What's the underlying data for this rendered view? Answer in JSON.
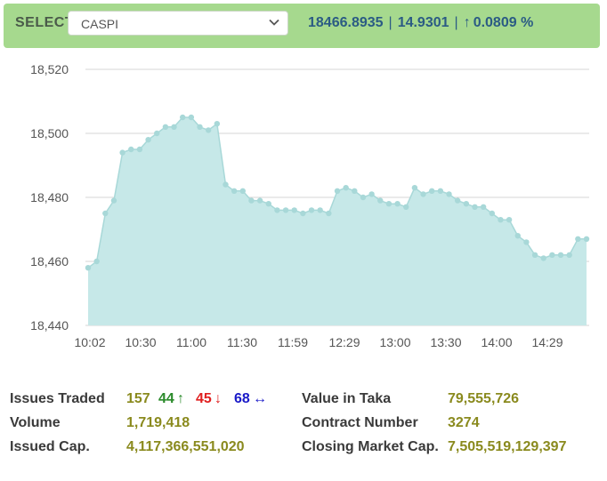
{
  "header": {
    "select_label": "SELECT",
    "selected_index": "CASPI",
    "value": "18466.8935",
    "change": "14.9301",
    "change_pct": "0.0809 %",
    "separator": "|",
    "arrow_icon": "↑",
    "accent_color": "#a6d98e"
  },
  "chart_data": {
    "type": "area",
    "ylim": [
      18440,
      18520
    ],
    "yticks": [
      18440,
      18460,
      18480,
      18500,
      18520
    ],
    "ytick_labels": [
      "18,440",
      "18,460",
      "18,480",
      "18,500",
      "18,520"
    ],
    "xtick_labels": [
      "10:02",
      "10:30",
      "11:00",
      "11:30",
      "11:59",
      "12:29",
      "13:00",
      "13:30",
      "14:00",
      "14:29"
    ],
    "series": [
      {
        "values": [
          18458,
          18460,
          18475,
          18479,
          18494,
          18495,
          18495,
          18498,
          18500,
          18502,
          18502,
          18505,
          18505,
          18502,
          18501,
          18503,
          18484,
          18482,
          18482,
          18479,
          18479,
          18478,
          18476,
          18476,
          18476,
          18475,
          18476,
          18476,
          18475,
          18482,
          18483,
          18482,
          18480,
          18481,
          18479,
          18478,
          18478,
          18477,
          18483,
          18481,
          18482,
          18482,
          18481,
          18479,
          18478,
          18477,
          18477,
          18475,
          18473,
          18473,
          18468,
          18466,
          18462,
          18461,
          18462,
          18462,
          18462,
          18467,
          18467
        ],
        "color": "#a8d8d8",
        "fill": "#c6e8e8"
      }
    ],
    "grid": true
  },
  "stats": {
    "issues_traded_label": "Issues Traded",
    "issues_traded": "157",
    "advanced": "44",
    "advanced_icon": "↑",
    "declined": "45",
    "declined_icon": "↓",
    "unchanged": "68",
    "unchanged_icon": "↔",
    "volume_label": "Volume",
    "volume": "1,719,418",
    "issued_cap_label": "Issued Cap.",
    "issued_cap": "4,117,366,551,020",
    "value_in_taka_label": "Value in Taka",
    "value_in_taka": "79,555,726",
    "contract_number_label": "Contract Number",
    "contract_number": "3274",
    "closing_cap_label": "Closing Market Cap.",
    "closing_cap": "7,505,519,129,397"
  }
}
